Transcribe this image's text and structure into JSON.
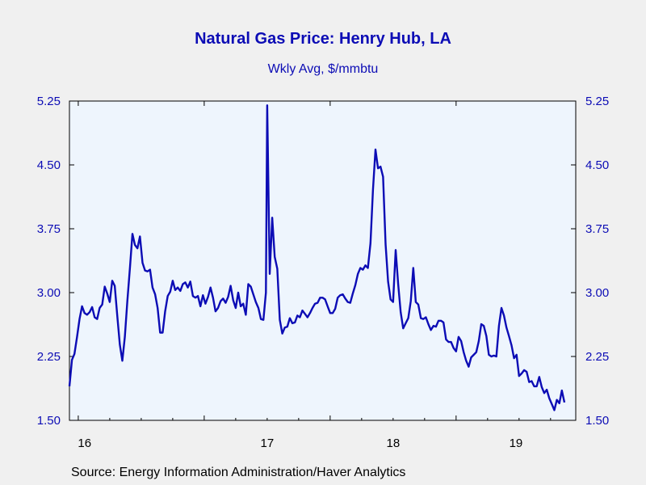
{
  "chart_data": {
    "type": "line",
    "title": "Natural Gas Price: Henry Hub, LA",
    "subtitle": "Wkly Avg, $/mmbtu",
    "source": "Source:  Energy Information Administration/Haver Analytics",
    "xlabel": "",
    "ylabel": "",
    "ylim": [
      1.5,
      5.25
    ],
    "yticks": [
      "1.50",
      "2.25",
      "3.00",
      "3.75",
      "4.50",
      "5.25"
    ],
    "xticks": [
      "16",
      "17",
      "18",
      "19"
    ],
    "xlim_years": [
      2015.93,
      2019.95
    ],
    "grid": false,
    "line_color": "#0c0cb5",
    "plot_background": "#eef5fd",
    "series": [
      {
        "name": "",
        "values": [
          [
            2015.93,
            1.9
          ],
          [
            2015.95,
            2.21
          ],
          [
            2015.97,
            2.28
          ],
          [
            2015.99,
            2.48
          ],
          [
            2016.01,
            2.69
          ],
          [
            2016.03,
            2.84
          ],
          [
            2016.05,
            2.76
          ],
          [
            2016.07,
            2.74
          ],
          [
            2016.09,
            2.77
          ],
          [
            2016.11,
            2.83
          ],
          [
            2016.13,
            2.71
          ],
          [
            2016.15,
            2.69
          ],
          [
            2016.17,
            2.82
          ],
          [
            2016.19,
            2.86
          ],
          [
            2016.21,
            3.07
          ],
          [
            2016.23,
            2.99
          ],
          [
            2016.25,
            2.89
          ],
          [
            2016.27,
            3.14
          ],
          [
            2016.29,
            3.08
          ],
          [
            2016.31,
            2.72
          ],
          [
            2016.33,
            2.39
          ],
          [
            2016.35,
            2.2
          ],
          [
            2016.37,
            2.48
          ],
          [
            2016.39,
            2.9
          ],
          [
            2016.41,
            3.29
          ],
          [
            2016.43,
            3.69
          ],
          [
            2016.45,
            3.56
          ],
          [
            2016.47,
            3.52
          ],
          [
            2016.49,
            3.66
          ],
          [
            2016.51,
            3.35
          ],
          [
            2016.53,
            3.26
          ],
          [
            2016.55,
            3.25
          ],
          [
            2016.57,
            3.27
          ],
          [
            2016.59,
            3.06
          ],
          [
            2016.61,
            2.98
          ],
          [
            2016.63,
            2.82
          ],
          [
            2016.65,
            2.53
          ],
          [
            2016.67,
            2.53
          ],
          [
            2016.69,
            2.78
          ],
          [
            2016.71,
            2.96
          ],
          [
            2016.73,
            3.01
          ],
          [
            2016.75,
            3.14
          ],
          [
            2016.77,
            3.03
          ],
          [
            2016.79,
            3.06
          ],
          [
            2016.81,
            3.02
          ],
          [
            2016.83,
            3.1
          ],
          [
            2016.85,
            3.12
          ],
          [
            2016.87,
            3.06
          ],
          [
            2016.89,
            3.13
          ],
          [
            2016.91,
            2.96
          ],
          [
            2016.93,
            2.94
          ],
          [
            2016.95,
            2.96
          ],
          [
            2016.97,
            2.84
          ],
          [
            2016.99,
            2.97
          ],
          [
            2017.01,
            2.87
          ],
          [
            2017.03,
            2.95
          ],
          [
            2017.05,
            3.06
          ],
          [
            2017.07,
            2.94
          ],
          [
            2017.09,
            2.78
          ],
          [
            2017.11,
            2.82
          ],
          [
            2017.13,
            2.9
          ],
          [
            2017.15,
            2.93
          ],
          [
            2017.17,
            2.88
          ],
          [
            2017.19,
            2.95
          ],
          [
            2017.21,
            3.08
          ],
          [
            2017.23,
            2.91
          ],
          [
            2017.25,
            2.82
          ],
          [
            2017.27,
            3.0
          ],
          [
            2017.29,
            2.84
          ],
          [
            2017.31,
            2.87
          ],
          [
            2017.33,
            2.74
          ],
          [
            2017.35,
            3.1
          ],
          [
            2017.37,
            3.07
          ],
          [
            2017.39,
            2.98
          ],
          [
            2017.41,
            2.89
          ],
          [
            2017.43,
            2.82
          ],
          [
            2017.45,
            2.69
          ],
          [
            2017.47,
            2.68
          ],
          [
            2017.49,
            3.0
          ],
          [
            2017.5,
            5.2
          ],
          [
            2017.52,
            3.22
          ],
          [
            2017.54,
            3.88
          ],
          [
            2017.56,
            3.42
          ],
          [
            2017.58,
            3.28
          ],
          [
            2017.6,
            2.68
          ],
          [
            2017.62,
            2.52
          ],
          [
            2017.64,
            2.59
          ],
          [
            2017.66,
            2.6
          ],
          [
            2017.68,
            2.7
          ],
          [
            2017.7,
            2.64
          ],
          [
            2017.72,
            2.65
          ],
          [
            2017.74,
            2.73
          ],
          [
            2017.76,
            2.71
          ],
          [
            2017.78,
            2.79
          ],
          [
            2017.8,
            2.75
          ],
          [
            2017.82,
            2.71
          ],
          [
            2017.84,
            2.76
          ],
          [
            2017.86,
            2.82
          ],
          [
            2017.88,
            2.87
          ],
          [
            2017.9,
            2.88
          ],
          [
            2017.92,
            2.94
          ],
          [
            2017.94,
            2.94
          ],
          [
            2017.96,
            2.92
          ],
          [
            2017.98,
            2.84
          ],
          [
            2018.0,
            2.76
          ],
          [
            2018.02,
            2.76
          ],
          [
            2018.04,
            2.81
          ],
          [
            2018.06,
            2.94
          ],
          [
            2018.08,
            2.97
          ],
          [
            2018.1,
            2.98
          ],
          [
            2018.12,
            2.93
          ],
          [
            2018.14,
            2.89
          ],
          [
            2018.16,
            2.88
          ],
          [
            2018.18,
            2.99
          ],
          [
            2018.2,
            3.09
          ],
          [
            2018.22,
            3.22
          ],
          [
            2018.24,
            3.29
          ],
          [
            2018.26,
            3.27
          ],
          [
            2018.28,
            3.32
          ],
          [
            2018.3,
            3.29
          ],
          [
            2018.32,
            3.58
          ],
          [
            2018.34,
            4.21
          ],
          [
            2018.36,
            4.68
          ],
          [
            2018.38,
            4.46
          ],
          [
            2018.4,
            4.48
          ],
          [
            2018.42,
            4.36
          ],
          [
            2018.44,
            3.57
          ],
          [
            2018.46,
            3.13
          ],
          [
            2018.48,
            2.92
          ],
          [
            2018.5,
            2.89
          ],
          [
            2018.52,
            3.5
          ],
          [
            2018.54,
            3.1
          ],
          [
            2018.56,
            2.77
          ],
          [
            2018.58,
            2.58
          ],
          [
            2018.6,
            2.64
          ],
          [
            2018.62,
            2.7
          ],
          [
            2018.64,
            2.9
          ],
          [
            2018.66,
            3.29
          ],
          [
            2018.68,
            2.89
          ],
          [
            2018.7,
            2.86
          ],
          [
            2018.72,
            2.7
          ],
          [
            2018.74,
            2.69
          ],
          [
            2018.76,
            2.71
          ],
          [
            2018.78,
            2.63
          ],
          [
            2018.8,
            2.56
          ],
          [
            2018.82,
            2.61
          ],
          [
            2018.84,
            2.6
          ],
          [
            2018.86,
            2.67
          ],
          [
            2018.88,
            2.67
          ],
          [
            2018.9,
            2.65
          ],
          [
            2018.92,
            2.45
          ],
          [
            2018.94,
            2.42
          ],
          [
            2018.96,
            2.42
          ],
          [
            2018.98,
            2.35
          ],
          [
            2019.0,
            2.31
          ],
          [
            2019.02,
            2.48
          ],
          [
            2019.04,
            2.43
          ],
          [
            2019.06,
            2.3
          ],
          [
            2019.08,
            2.2
          ],
          [
            2019.1,
            2.13
          ],
          [
            2019.12,
            2.24
          ],
          [
            2019.14,
            2.27
          ],
          [
            2019.16,
            2.3
          ],
          [
            2019.18,
            2.43
          ],
          [
            2019.2,
            2.63
          ],
          [
            2019.22,
            2.61
          ],
          [
            2019.24,
            2.49
          ],
          [
            2019.26,
            2.27
          ],
          [
            2019.28,
            2.25
          ],
          [
            2019.3,
            2.26
          ],
          [
            2019.32,
            2.25
          ],
          [
            2019.34,
            2.61
          ],
          [
            2019.36,
            2.82
          ],
          [
            2019.38,
            2.73
          ],
          [
            2019.4,
            2.59
          ],
          [
            2019.42,
            2.49
          ],
          [
            2019.44,
            2.38
          ],
          [
            2019.46,
            2.23
          ],
          [
            2019.48,
            2.27
          ],
          [
            2019.5,
            2.02
          ],
          [
            2019.52,
            2.05
          ],
          [
            2019.54,
            2.09
          ],
          [
            2019.56,
            2.07
          ],
          [
            2019.58,
            1.95
          ],
          [
            2019.6,
            1.96
          ],
          [
            2019.62,
            1.9
          ],
          [
            2019.64,
            1.9
          ],
          [
            2019.66,
            2.01
          ],
          [
            2019.68,
            1.89
          ],
          [
            2019.7,
            1.82
          ],
          [
            2019.72,
            1.86
          ],
          [
            2019.74,
            1.76
          ],
          [
            2019.76,
            1.69
          ],
          [
            2019.78,
            1.62
          ],
          [
            2019.8,
            1.74
          ],
          [
            2019.82,
            1.7
          ],
          [
            2019.84,
            1.85
          ],
          [
            2019.86,
            1.71
          ]
        ]
      }
    ]
  }
}
